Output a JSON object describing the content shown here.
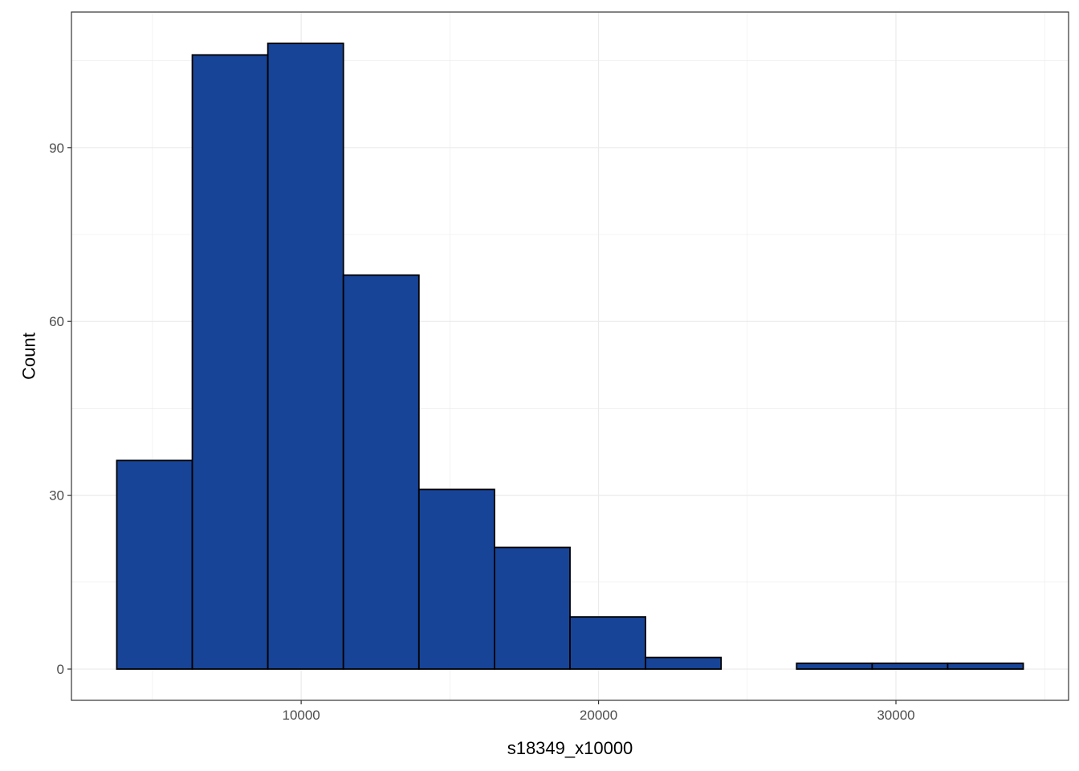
{
  "chart_data": {
    "type": "bar",
    "histogram": true,
    "title": "",
    "xlabel": "s18349_x10000",
    "ylabel": "Count",
    "bins": [
      {
        "x0": 3800,
        "x1": 6340,
        "count": 36
      },
      {
        "x0": 6340,
        "x1": 8880,
        "count": 106
      },
      {
        "x0": 8880,
        "x1": 11420,
        "count": 108
      },
      {
        "x0": 11420,
        "x1": 13960,
        "count": 68
      },
      {
        "x0": 13960,
        "x1": 16500,
        "count": 31
      },
      {
        "x0": 16500,
        "x1": 19040,
        "count": 21
      },
      {
        "x0": 19040,
        "x1": 21580,
        "count": 9
      },
      {
        "x0": 21580,
        "x1": 24120,
        "count": 2
      },
      {
        "x0": 24120,
        "x1": 26660,
        "count": 0
      },
      {
        "x0": 26660,
        "x1": 29200,
        "count": 1
      },
      {
        "x0": 29200,
        "x1": 31740,
        "count": 1
      },
      {
        "x0": 31740,
        "x1": 34280,
        "count": 1
      }
    ],
    "xlim": [
      2276,
      35804
    ],
    "ylim": [
      -5.4,
      113.4
    ],
    "xticks": [
      10000,
      20000,
      30000
    ],
    "xtick_labels": [
      "10000",
      "20000",
      "30000"
    ],
    "yticks": [
      0,
      30,
      60,
      90
    ],
    "ytick_labels": [
      "0",
      "30",
      "60",
      "90"
    ],
    "grid": true,
    "fill_color": "#184497",
    "outline_color": "#000000"
  }
}
